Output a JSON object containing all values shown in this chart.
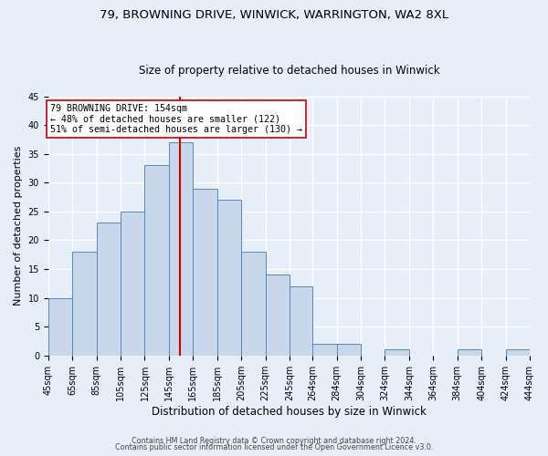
{
  "title1": "79, BROWNING DRIVE, WINWICK, WARRINGTON, WA2 8XL",
  "title2": "Size of property relative to detached houses in Winwick",
  "xlabel": "Distribution of detached houses by size in Winwick",
  "ylabel": "Number of detached properties",
  "footer1": "Contains HM Land Registry data © Crown copyright and database right 2024.",
  "footer2": "Contains public sector information licensed under the Open Government Licence v3.0.",
  "bar_values": [
    10,
    18,
    23,
    25,
    33,
    37,
    29,
    27,
    18,
    14,
    12,
    2,
    2,
    0,
    1,
    0,
    0,
    1,
    0,
    1
  ],
  "bin_edges": [
    45,
    65,
    85,
    105,
    125,
    145,
    165,
    185,
    205,
    225,
    245,
    264,
    284,
    304,
    324,
    344,
    364,
    384,
    404,
    424,
    444
  ],
  "tick_labels": [
    "45sqm",
    "65sqm",
    "85sqm",
    "105sqm",
    "125sqm",
    "145sqm",
    "165sqm",
    "185sqm",
    "205sqm",
    "225sqm",
    "245sqm",
    "264sqm",
    "284sqm",
    "304sqm",
    "324sqm",
    "344sqm",
    "364sqm",
    "384sqm",
    "404sqm",
    "424sqm",
    "444sqm"
  ],
  "bar_color": "#c8d8ea",
  "bar_edgecolor": "#5588bb",
  "property_size": 154,
  "vline_color": "#cc0000",
  "ann_line1": "79 BROWNING DRIVE: 154sqm",
  "ann_line2": "← 48% of detached houses are smaller (122)",
  "ann_line3": "51% of semi-detached houses are larger (130) →",
  "ann_edge_color": "#cc0000",
  "ylim_max": 45,
  "bg_color": "#e8eef8",
  "grid_color": "#ffffff",
  "title1_fontsize": 9.5,
  "title2_fontsize": 8.5,
  "xlabel_fontsize": 8.5,
  "ylabel_fontsize": 8,
  "tick_fontsize": 7,
  "ann_fontsize": 7.2,
  "footer_fontsize": 5.8
}
